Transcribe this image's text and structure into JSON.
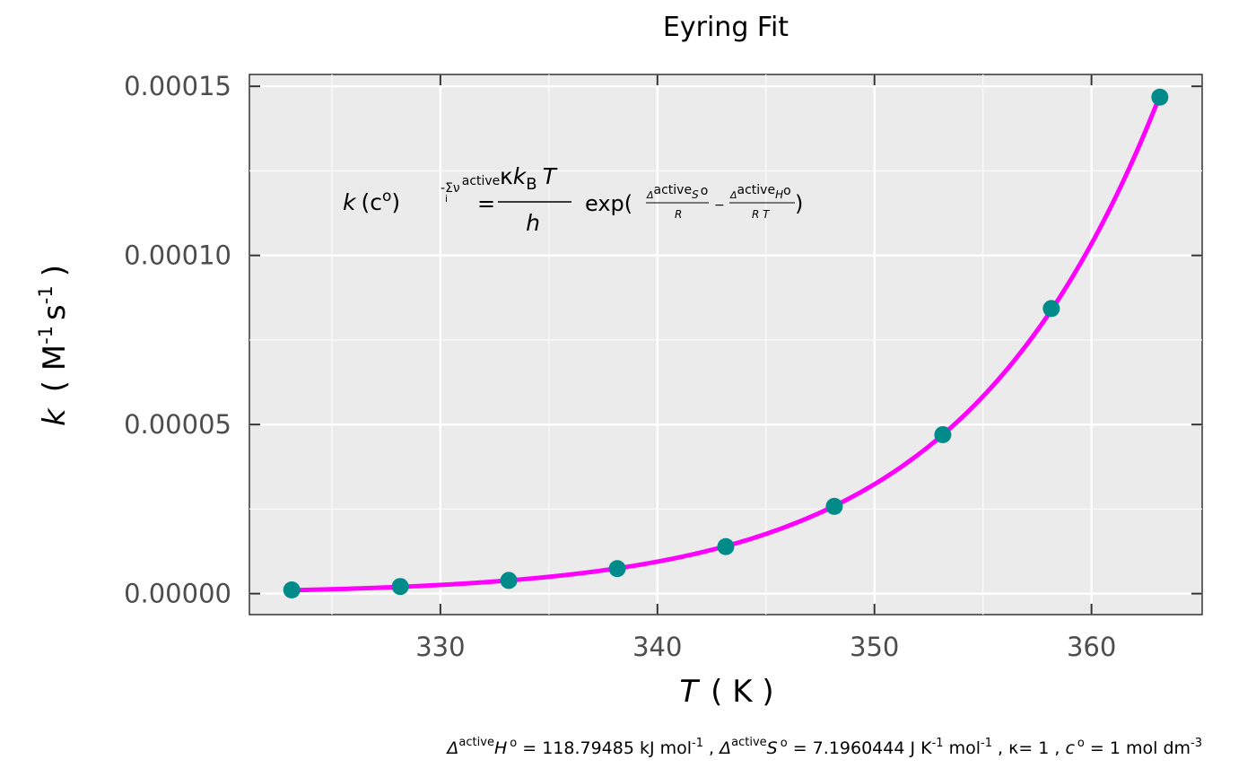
{
  "chart_data": {
    "type": "scatter",
    "title": "Eyring Fit",
    "xlabel": {
      "symbol": "T",
      "unit": "( K )"
    },
    "ylabel": {
      "symbol": "k",
      "unit_M": "( M",
      "unit_m1": "-1",
      "unit_s": "s",
      "unit_m1b": "-1",
      "unit_close": ")"
    },
    "xlim": [
      321.2,
      365.1
    ],
    "ylim": [
      -6.2e-06,
      0.0001535
    ],
    "x_ticks": [
      330,
      340,
      350,
      360
    ],
    "x_tick_labels": [
      "330",
      "340",
      "350",
      "360"
    ],
    "y_ticks": [
      0,
      5e-05,
      0.0001,
      0.00015
    ],
    "y_tick_labels": [
      "0.00000",
      "0.00005",
      "0.00010",
      "0.00015"
    ],
    "x_minor_gridlines": [
      325,
      335,
      345,
      355
    ],
    "y_minor_gridlines": [
      2.5e-05,
      7.5e-05,
      0.000125
    ],
    "grid": true,
    "series": [
      {
        "kind": "points",
        "color": "#008b8b",
        "x": [
          323.15,
          328.15,
          333.15,
          338.15,
          343.15,
          348.15,
          353.15,
          358.15,
          363.15
        ],
        "y": [
          1.1e-06,
          2.1e-06,
          3.9e-06,
          7.4e-06,
          1.39e-05,
          2.58e-05,
          4.7e-05,
          8.43e-05,
          0.0001468
        ]
      },
      {
        "kind": "fit-line",
        "color": "#ff00ff"
      }
    ],
    "fit": {
      "dH_kJ": 118.79485,
      "dS_J": 7.1960444,
      "kappa": 1,
      "c0": 1
    },
    "equation": {
      "lhs_k": "k",
      "lhs_c": "(c",
      "lhs_deg": "o",
      "lhs_close": ")",
      "exp_minus": "-",
      "exp_sum": "Σν",
      "exp_i": "i",
      "exp_active": "active",
      "equals": "=",
      "frac_num_kappa": "κ",
      "frac_num_k": "k",
      "frac_num_B": "B",
      "frac_num_T": "T",
      "frac_den": "h",
      "exp_word": "exp(",
      "s_delta": "Δ",
      "s_active": "active",
      "s_S": "S",
      "s_deg": "o",
      "s_den": "R",
      "minus": "−",
      "h_delta": "Δ",
      "h_active": "active",
      "h_H": "H",
      "h_deg": "o",
      "h_den": "R T",
      "close": ")"
    },
    "caption": {
      "part1_delta": "Δ",
      "part1_active": "active",
      "part1_H": "H",
      "part1_deg": "o",
      "part1_value": " = 118.79485 kJ mol",
      "part1_exp": "-1",
      "part2_sep": " , ",
      "part2_delta": "Δ",
      "part2_active": "active",
      "part2_S": "S",
      "part2_deg": "o",
      "part2_value": " = 7.1960444  J K",
      "part2_exp1": "-1",
      "part2_mol": " mol",
      "part2_exp2": "-1",
      "part3": " , κ= 1 , ",
      "part3_c": "c",
      "part3_deg": "o",
      "part3_value": " = 1  mol dm",
      "part3_exp": "-3"
    }
  }
}
